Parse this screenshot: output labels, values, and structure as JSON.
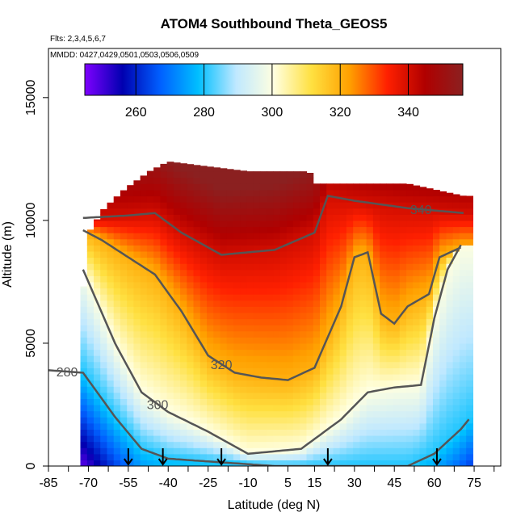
{
  "chart_data": {
    "type": "heatmap",
    "title": "ATOM4 Southbound Theta_GEOS5",
    "subtitle_flights": "Flts: 2,3,4,5,6,7",
    "subtitle_dates": "MMDD: 0427,0429,0501,0503,0506,0509",
    "xlabel": "Latitude (deg N)",
    "ylabel": "Altitude (m)",
    "xlim": [
      -85,
      85
    ],
    "ylim": [
      0,
      17000
    ],
    "x_ticks": [
      -85,
      -70,
      -55,
      -40,
      -25,
      -10,
      5,
      15,
      30,
      45,
      60,
      75
    ],
    "x_tick_labels": [
      "-85",
      "-70",
      "-55",
      "-40",
      "-25",
      "-10",
      "5",
      "15",
      "30",
      "45",
      "60",
      "75"
    ],
    "x_minor_ticks": [
      -77.5,
      -62.5,
      -47.5,
      -32.5,
      -17.5,
      -2.5,
      22.5,
      37.5,
      52.5,
      67.5,
      82.5
    ],
    "y_ticks": [
      0,
      5000,
      10000,
      15000
    ],
    "y_tick_labels": [
      "0",
      "5000",
      "10000",
      "15000"
    ],
    "colorbar": {
      "min": 245,
      "max": 356,
      "ticks": [
        260,
        280,
        300,
        320,
        340
      ],
      "tick_labels": [
        "260",
        "280",
        "300",
        "320",
        "340"
      ],
      "colors": [
        "#7f00ff",
        "#0000b0",
        "#0060ff",
        "#00bfff",
        "#bfe8ff",
        "#ffffe0",
        "#ffe040",
        "#ffa000",
        "#ff2000",
        "#b00000",
        "#8b2020"
      ]
    },
    "contour_levels": [
      280,
      300,
      320,
      340
    ],
    "contour_labels": [
      "280",
      "300",
      "320",
      "340"
    ],
    "profile_markers_lat": [
      -55,
      -42,
      -20,
      20,
      61
    ],
    "grid": false,
    "legend": "colorbar-top"
  }
}
